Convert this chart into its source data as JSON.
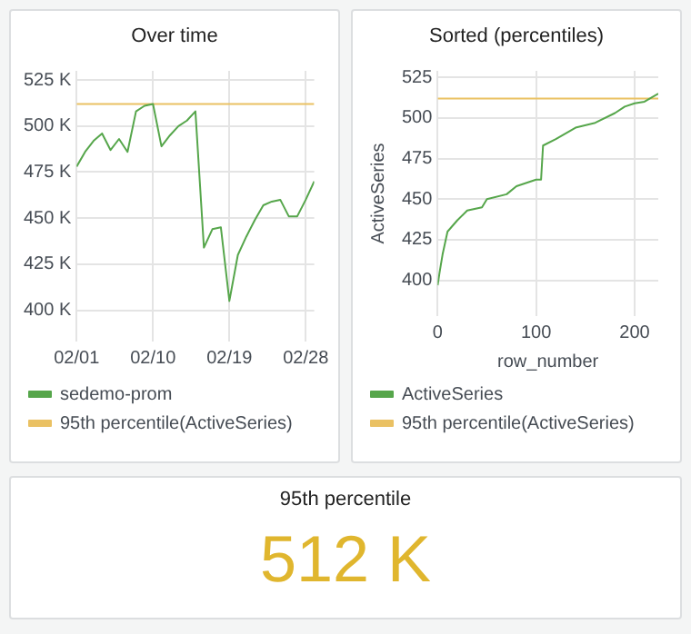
{
  "chart_data": [
    {
      "type": "line",
      "title": "Over time",
      "x": [
        "--02-01",
        "--02-02",
        "--02-03",
        "--02-04",
        "--02-05",
        "--02-06",
        "--02-07",
        "--02-08",
        "--02-09",
        "--02-10",
        "--02-11",
        "--02-12",
        "--02-13",
        "--02-14",
        "--02-15",
        "--02-16",
        "--02-17",
        "--02-18",
        "--02-19",
        "--02-20",
        "--02-21",
        "--02-22",
        "--02-23",
        "--02-24",
        "--02-25",
        "--02-26",
        "--02-27",
        "--02-28",
        "--02-29"
      ],
      "series": [
        {
          "name": "sedemo-prom",
          "color": "#56a64b",
          "values": [
            478,
            486,
            492,
            496,
            487,
            493,
            486,
            508,
            511,
            512,
            489,
            495,
            500,
            503,
            508,
            434,
            444,
            445,
            405,
            430,
            440,
            449,
            457,
            459,
            460,
            451,
            451,
            460,
            470
          ]
        },
        {
          "name": "95th percentile(ActiveSeries)",
          "color": "#eac163",
          "values": [
            512,
            512,
            512,
            512,
            512,
            512,
            512,
            512,
            512,
            512,
            512,
            512,
            512,
            512,
            512,
            512,
            512,
            512,
            512,
            512,
            512,
            512,
            512,
            512,
            512,
            512,
            512,
            512,
            512
          ]
        }
      ],
      "xlim": [
        "--02-01",
        "--02-29"
      ],
      "xticks": [
        {
          "value": "--02-01",
          "label": "02/01"
        },
        {
          "value": "--02-10",
          "label": "02/10"
        },
        {
          "value": "--02-19",
          "label": "02/19"
        },
        {
          "value": "--02-28",
          "label": "02/28"
        }
      ],
      "ylim": [
        383,
        530
      ],
      "yticks": [
        {
          "value": 400,
          "label": "400 K"
        },
        {
          "value": 425,
          "label": "425 K"
        },
        {
          "value": 450,
          "label": "450 K"
        },
        {
          "value": 475,
          "label": "475 K"
        },
        {
          "value": 500,
          "label": "500 K"
        },
        {
          "value": 525,
          "label": "525 K"
        }
      ],
      "grid": true,
      "legend": "bottom",
      "marker": "none"
    },
    {
      "type": "line",
      "title": "Sorted (percentiles)",
      "xlabel": "row_number",
      "ylabel": "ActiveSeries",
      "x": [
        0,
        2,
        5,
        10,
        20,
        30,
        45,
        50,
        70,
        80,
        100,
        105,
        107,
        120,
        140,
        160,
        180,
        190,
        200,
        210,
        224
      ],
      "series": [
        {
          "name": "ActiveSeries",
          "color": "#56a64b",
          "values": [
            397,
            405,
            416,
            430,
            437,
            443,
            445,
            450,
            453,
            458,
            462,
            462,
            483,
            487,
            494,
            497,
            503,
            507,
            509,
            510,
            515
          ]
        },
        {
          "name": "95th percentile(ActiveSeries)",
          "color": "#eac163",
          "values": [
            512,
            512,
            512,
            512,
            512,
            512,
            512,
            512,
            512,
            512,
            512,
            512,
            512,
            512,
            512,
            512,
            512,
            512,
            512,
            512,
            512
          ]
        }
      ],
      "xlim": [
        0,
        224
      ],
      "xticks": [
        0,
        100,
        200
      ],
      "ylim": [
        378,
        529
      ],
      "yticks": [
        400,
        425,
        450,
        475,
        500,
        525
      ],
      "grid": true,
      "legend": "bottom",
      "marker": "none"
    },
    {
      "type": "other",
      "title": "95th percentile",
      "annotations": [
        "512 K"
      ]
    }
  ]
}
